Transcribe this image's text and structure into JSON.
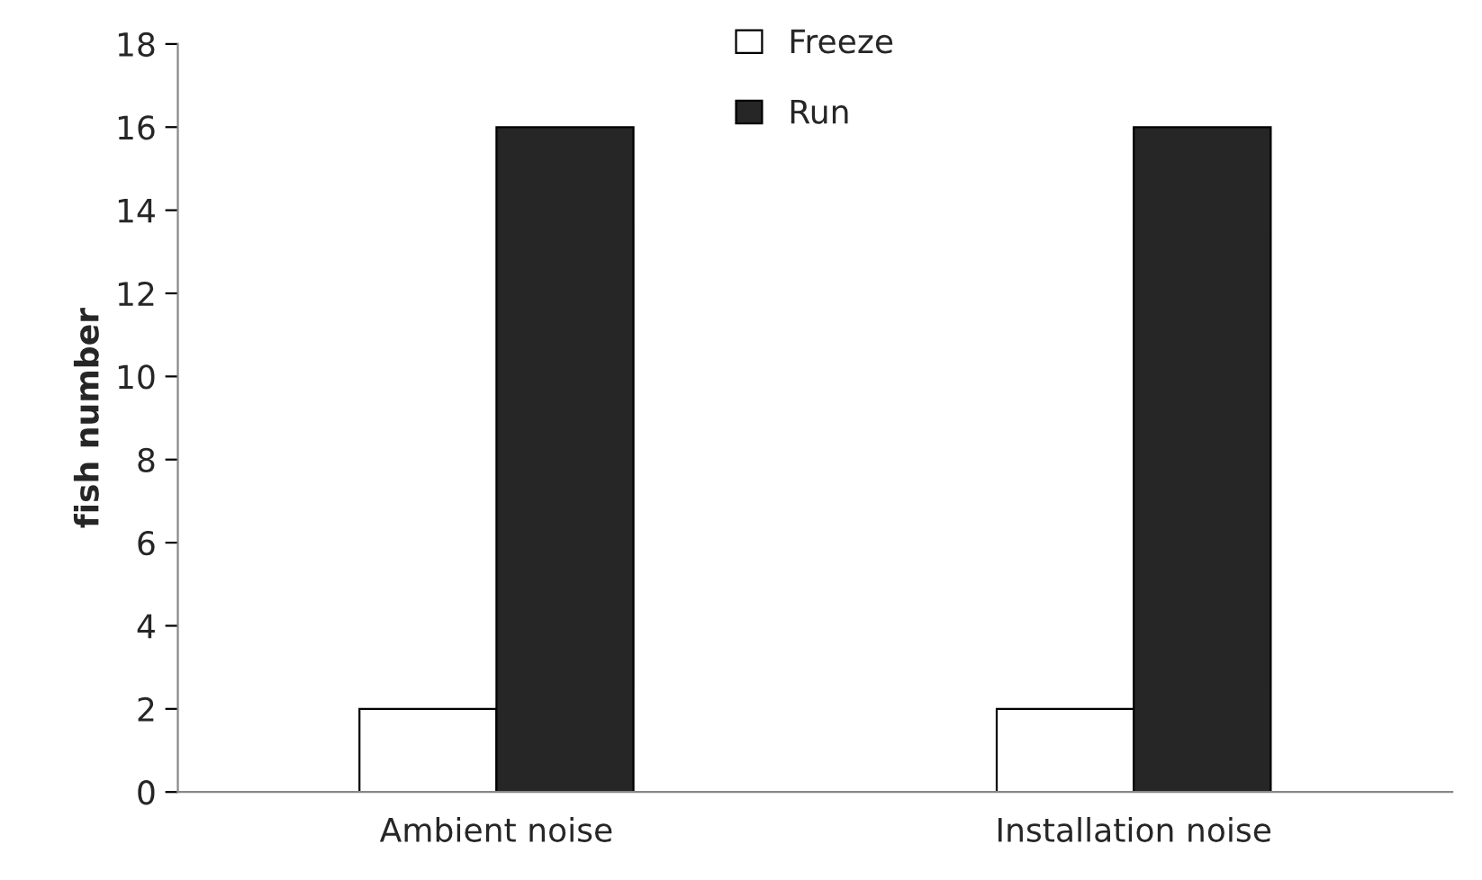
{
  "chart_data": {
    "type": "bar",
    "ylabel": "fish number",
    "categories": [
      "Ambient noise",
      "Installation noise"
    ],
    "series": [
      {
        "name": "Freeze",
        "color": "#ffffff",
        "values": [
          2,
          2
        ]
      },
      {
        "name": "Run",
        "color": "#262626",
        "values": [
          16,
          16
        ]
      }
    ],
    "ylim": [
      0,
      18
    ],
    "yticks": [
      0,
      2,
      4,
      6,
      8,
      10,
      12,
      14,
      16,
      18
    ],
    "grid": false,
    "legend": "top"
  }
}
